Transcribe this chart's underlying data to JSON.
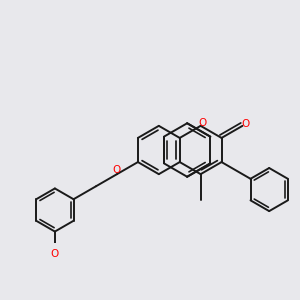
{
  "background_color": "#e8e8ec",
  "bond_color": "#1a1a1a",
  "atom_color_O": "#ff0000",
  "line_width": 1.4,
  "figsize": [
    3.0,
    3.0
  ],
  "dpi": 100,
  "xlim": [
    -4.5,
    3.5
  ],
  "ylim": [
    -2.5,
    2.5
  ]
}
